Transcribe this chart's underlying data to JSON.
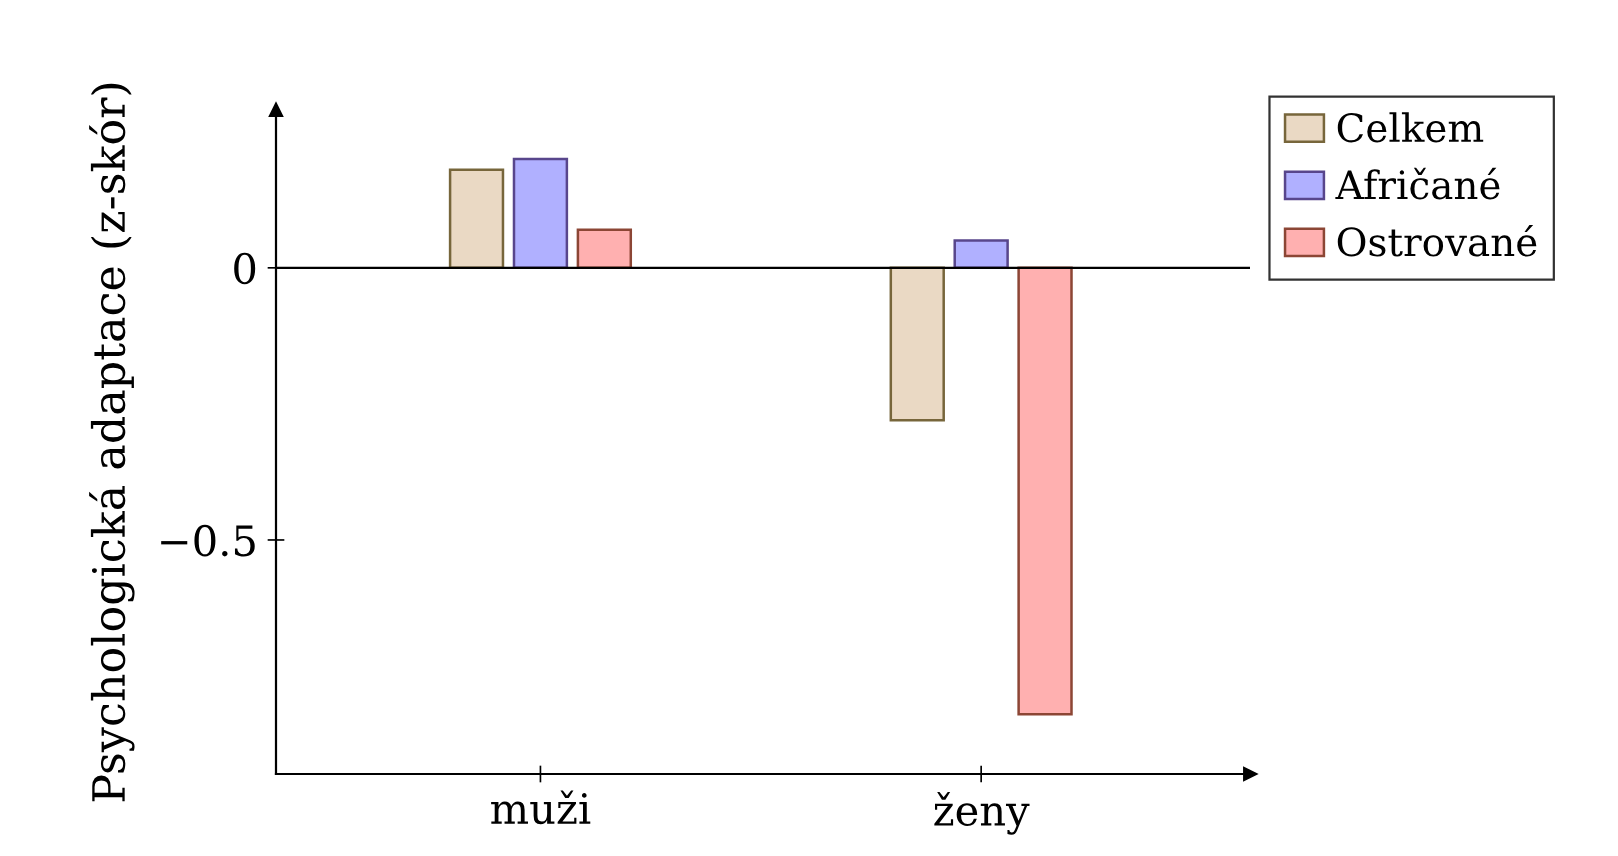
{
  "chart_data": {
    "type": "bar",
    "ylabel": "Psychologická adaptace (z-skór)",
    "categories": [
      "muži",
      "ženy"
    ],
    "series": [
      {
        "name": "Celkem",
        "color": "#ead9c4",
        "values": [
          0.18,
          -0.28
        ]
      },
      {
        "name": "Afričané",
        "color": "#b0b0ff",
        "values": [
          0.2,
          0.05
        ]
      },
      {
        "name": "Ostrované",
        "color": "#ffb0b0",
        "values": [
          0.07,
          -0.82
        ]
      }
    ],
    "ylim": [
      -0.93,
      0.29
    ],
    "yticks": [
      0,
      {
        "value": -0.5,
        "label": "−0.5"
      }
    ],
    "legend": "top right"
  }
}
